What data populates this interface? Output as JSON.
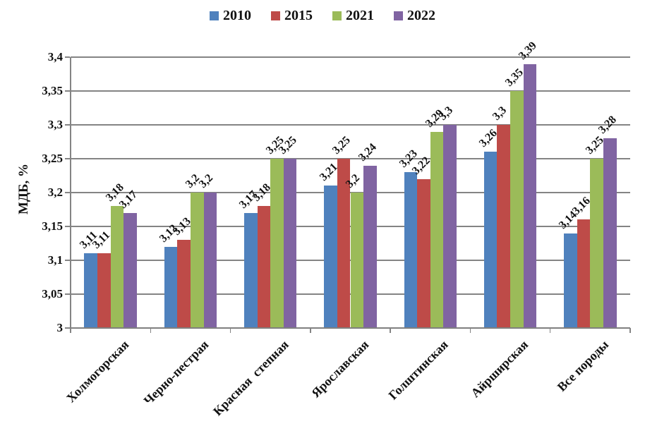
{
  "chart_data": {
    "type": "bar",
    "title": "",
    "ylabel": "МДБ, %",
    "xlabel": "",
    "categories": [
      "Холмогорская",
      "Черно-пестрая",
      "Красная  степная",
      "Ярославская",
      "Голштинская",
      "Айрширская",
      "Все породы"
    ],
    "series": [
      {
        "name": "2010",
        "color": "#4F81BD",
        "values": [
          3.11,
          3.12,
          3.17,
          3.21,
          3.23,
          3.26,
          3.14
        ],
        "labels": [
          "3,11",
          "3,12",
          "3,17",
          "3,21",
          "3,23",
          "3,26",
          "3,14"
        ]
      },
      {
        "name": "2015",
        "color": "#BE4B48",
        "values": [
          3.11,
          3.13,
          3.18,
          3.25,
          3.22,
          3.3,
          3.16
        ],
        "labels": [
          "3,11",
          "3,13",
          "3,18",
          "3,25",
          "3,22",
          "3,3",
          "3,16"
        ]
      },
      {
        "name": "2021",
        "color": "#9BBB59",
        "values": [
          3.18,
          3.2,
          3.25,
          3.2,
          3.29,
          3.35,
          3.25
        ],
        "labels": [
          "3,18",
          "3,2",
          "3,25",
          "3,2",
          "3,29",
          "3,35",
          "3,25"
        ]
      },
      {
        "name": "2022",
        "color": "#8064A2",
        "values": [
          3.17,
          3.2,
          3.25,
          3.24,
          3.3,
          3.39,
          3.28
        ],
        "labels": [
          "3,17",
          "3,2",
          "3,25",
          "3,24",
          "3,3",
          "3,39",
          "3,28"
        ]
      }
    ],
    "ylim": [
      3.0,
      3.4
    ],
    "ytick_step": 0.05,
    "ytick_labels": [
      "3",
      "3,05",
      "3,1",
      "3,15",
      "3,2",
      "3,25",
      "3,3",
      "3,35",
      "3,4"
    ],
    "decimal_separator": ",",
    "grid": "horizontal",
    "legend_position": "top",
    "axis_color": "#848484",
    "text_color": "#111111"
  }
}
